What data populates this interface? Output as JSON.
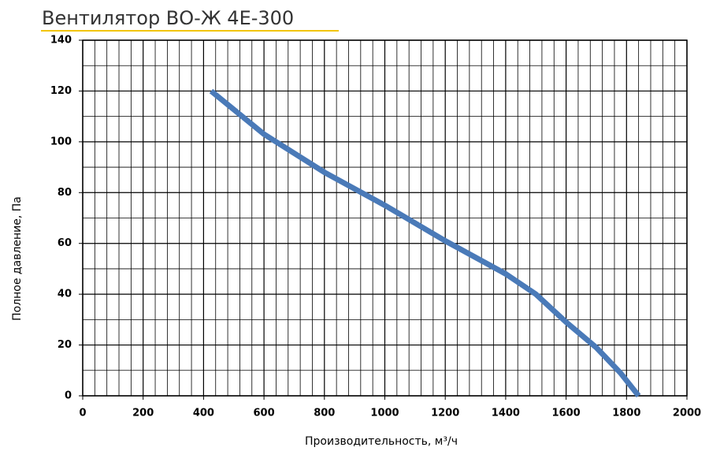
{
  "chart_data": {
    "type": "line",
    "title": "Вентилятор ВО-Ж 4Е-300",
    "x_label": "Производительность, м³/ч",
    "y_label": "Полное давление, Па",
    "x": [
      425,
      600,
      800,
      1000,
      1200,
      1400,
      1500,
      1600,
      1700,
      1780,
      1840
    ],
    "series": [
      {
        "color": "#4a7ab8",
        "values": [
          120,
          103,
          88,
          75,
          61,
          48,
          40,
          29,
          19,
          9,
          0
        ]
      }
    ],
    "xlim": [
      0,
      2000
    ],
    "xticks": [
      0,
      200,
      400,
      600,
      800,
      1000,
      1200,
      1400,
      1600,
      1800,
      2000
    ],
    "ylim": [
      0,
      140
    ],
    "yticks": [
      0,
      20,
      40,
      60,
      80,
      100,
      120,
      140
    ],
    "grid": true
  }
}
